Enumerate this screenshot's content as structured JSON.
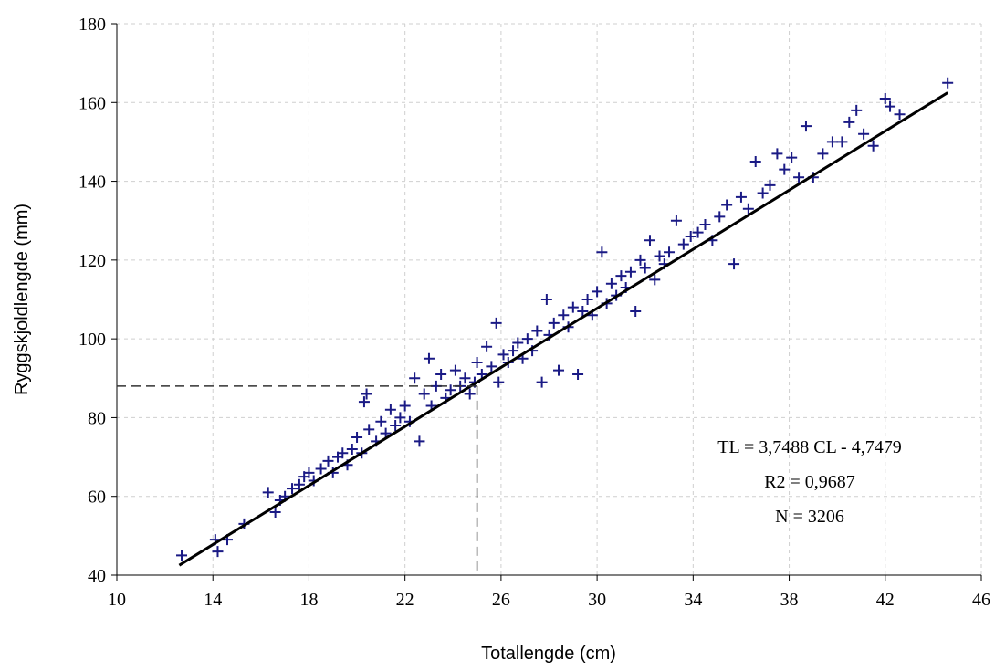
{
  "chart_data": {
    "type": "scatter",
    "x_label": "Totallengde (cm)",
    "y_label": "Ryggskjoldlengde (mm)",
    "xlim": [
      10,
      46
    ],
    "xticks": [
      10,
      14,
      18,
      22,
      26,
      30,
      34,
      38,
      42,
      46
    ],
    "ylim": [
      40,
      180
    ],
    "yticks": [
      40,
      60,
      80,
      100,
      120,
      140,
      160,
      180
    ],
    "grid": true,
    "color": "#1a1a85",
    "x": [
      12.7,
      14.1,
      14.2,
      14.6,
      15.3,
      16.3,
      16.6,
      16.8,
      17.0,
      17.3,
      17.6,
      17.8,
      18.0,
      18.2,
      18.5,
      18.8,
      19.0,
      19.2,
      19.4,
      19.6,
      19.8,
      20.0,
      20.2,
      20.4,
      20.3,
      20.5,
      20.8,
      21.0,
      21.2,
      21.4,
      21.6,
      21.8,
      22.0,
      22.2,
      22.4,
      22.6,
      22.8,
      23.0,
      23.1,
      23.3,
      23.5,
      23.7,
      23.9,
      24.1,
      24.3,
      24.5,
      24.7,
      24.9,
      25.0,
      25.2,
      25.4,
      25.6,
      25.8,
      25.9,
      26.1,
      26.3,
      26.5,
      26.7,
      26.9,
      27.1,
      27.3,
      27.5,
      27.7,
      27.9,
      28.0,
      28.2,
      28.4,
      28.6,
      28.8,
      29.0,
      29.2,
      29.4,
      29.6,
      29.8,
      30.0,
      30.2,
      30.4,
      30.6,
      30.8,
      31.0,
      31.2,
      31.4,
      31.6,
      31.8,
      32.0,
      32.2,
      32.4,
      32.6,
      32.8,
      33.0,
      33.3,
      33.6,
      33.9,
      34.2,
      34.5,
      34.8,
      35.1,
      35.4,
      35.7,
      36.0,
      36.3,
      36.6,
      36.9,
      37.2,
      37.5,
      37.8,
      38.1,
      38.4,
      38.7,
      39.0,
      39.4,
      39.8,
      40.2,
      40.5,
      40.8,
      41.1,
      41.5,
      42.0,
      42.2,
      42.6,
      44.6
    ],
    "y": [
      45,
      49,
      46,
      49,
      53,
      61,
      56,
      59,
      60,
      62,
      63,
      65,
      66,
      64,
      67,
      69,
      66,
      70,
      71,
      68,
      72,
      75,
      71,
      86,
      84,
      77,
      74,
      79,
      76,
      82,
      78,
      80,
      83,
      79,
      90,
      74,
      86,
      95,
      83,
      88,
      91,
      85,
      87,
      92,
      88,
      90,
      86,
      89,
      94,
      91,
      98,
      93,
      104,
      89,
      96,
      94,
      97,
      99,
      95,
      100,
      97,
      102,
      89,
      110,
      101,
      104,
      92,
      106,
      103,
      108,
      91,
      107,
      110,
      106,
      112,
      122,
      109,
      114,
      111,
      116,
      113,
      117,
      107,
      120,
      118,
      125,
      115,
      121,
      119,
      122,
      130,
      124,
      126,
      127,
      129,
      125,
      131,
      134,
      119,
      136,
      133,
      145,
      137,
      139,
      147,
      143,
      146,
      141,
      154,
      141,
      147,
      150,
      150,
      155,
      158,
      152,
      149,
      161,
      159,
      157,
      165
    ],
    "fit_line": {
      "x": [
        12.6,
        44.6
      ],
      "y": [
        42.5,
        162.5
      ]
    },
    "reference": {
      "x": 25,
      "y": 88
    },
    "annotations": [
      "TL = 3,7488 CL - 4,7479",
      "R2 = 0,9687",
      "N = 3206"
    ]
  }
}
